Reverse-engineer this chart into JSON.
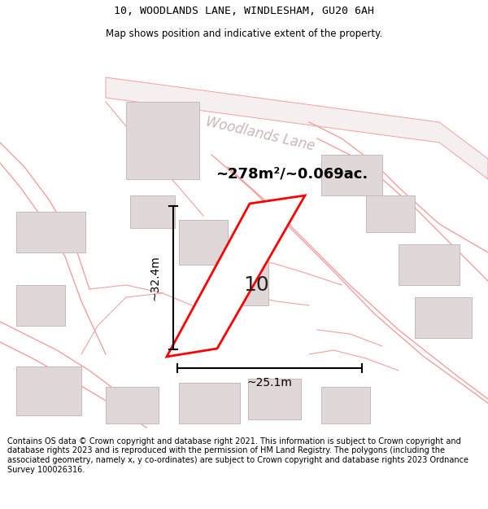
{
  "title_line1": "10, WOODLANDS LANE, WINDLESHAM, GU20 6AH",
  "title_line2": "Map shows position and indicative extent of the property.",
  "footer_text": "Contains OS data © Crown copyright and database right 2021. This information is subject to Crown copyright and database rights 2023 and is reproduced with the permission of HM Land Registry. The polygons (including the associated geometry, namely x, y co-ordinates) are subject to Crown copyright and database rights 2023 Ordnance Survey 100026316.",
  "area_label": "~278m²/~0.069ac.",
  "width_label": "~25.1m",
  "height_label": "~32.4m",
  "house_number": "10",
  "road_label": "Woodlands Lane",
  "map_bg": "#f7f2f2",
  "plot_color": "#ff0000",
  "building_fill": "#e0d8d8",
  "road_line_color": "#f0a0a0",
  "road_label_color": "#c0aaaa",
  "dim_color": "#000000"
}
